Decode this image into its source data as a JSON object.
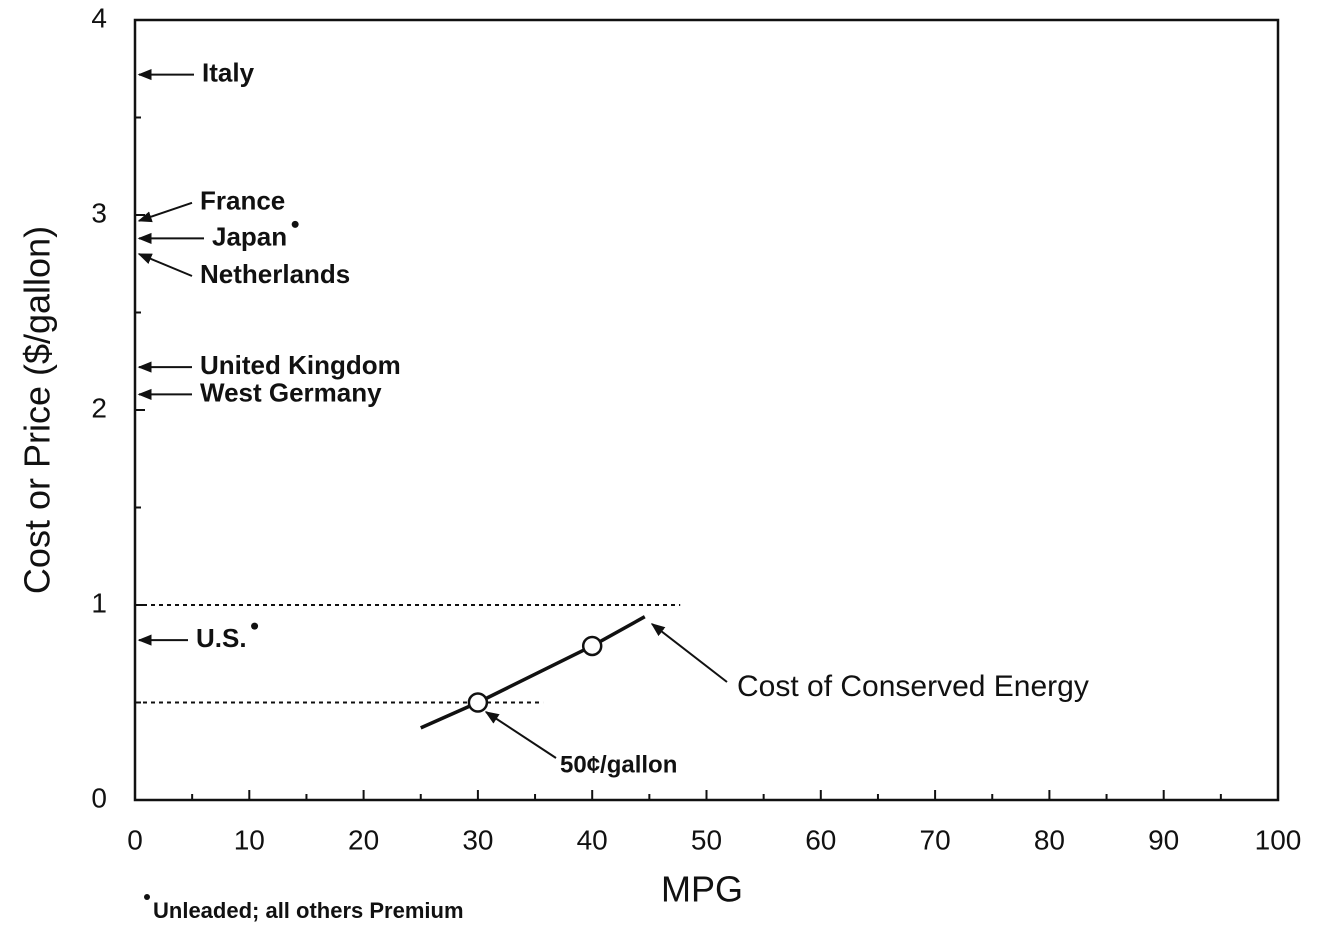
{
  "chart_data": {
    "type": "line",
    "x_label": "MPG",
    "y_label": "Cost or Price ($/gallon)",
    "xlim": [
      0,
      100
    ],
    "ylim": [
      0,
      4
    ],
    "xticks": [
      0,
      10,
      20,
      30,
      40,
      50,
      60,
      70,
      80,
      90,
      100
    ],
    "yticks": [
      0,
      1,
      2,
      3,
      4
    ],
    "xminorticks": [
      5,
      15,
      25,
      35,
      45,
      55,
      65,
      75,
      85,
      95
    ],
    "yminorticks": [
      0.5,
      1.5,
      2.5,
      3.5
    ],
    "series": [
      {
        "name": "Cost of Conserved Energy",
        "color": "#111111",
        "x": [
          25,
          30,
          40,
          44.6
        ],
        "values": [
          0.37,
          0.5,
          0.79,
          0.94
        ],
        "markers": [
          false,
          true,
          true,
          false
        ]
      }
    ],
    "reference_lines": [
      {
        "y": 1,
        "x_end": 47.7
      },
      {
        "y": 0.5,
        "x_end": 35.7
      }
    ],
    "price_markers": [
      {
        "text": "Italy",
        "y": 3.72
      },
      {
        "text": "France",
        "y": 2.97
      },
      {
        "text": "Japan",
        "y": 2.88,
        "unleaded": true
      },
      {
        "text": "Netherlands",
        "y": 2.8
      },
      {
        "text": "United Kingdom",
        "y": 2.22
      },
      {
        "text": "West Germany",
        "y": 2.08
      },
      {
        "text": "U.S.",
        "y": 0.82,
        "unleaded": true
      }
    ],
    "point_label": "50¢/gallon",
    "footnote": "Unleaded; all others Premium"
  }
}
